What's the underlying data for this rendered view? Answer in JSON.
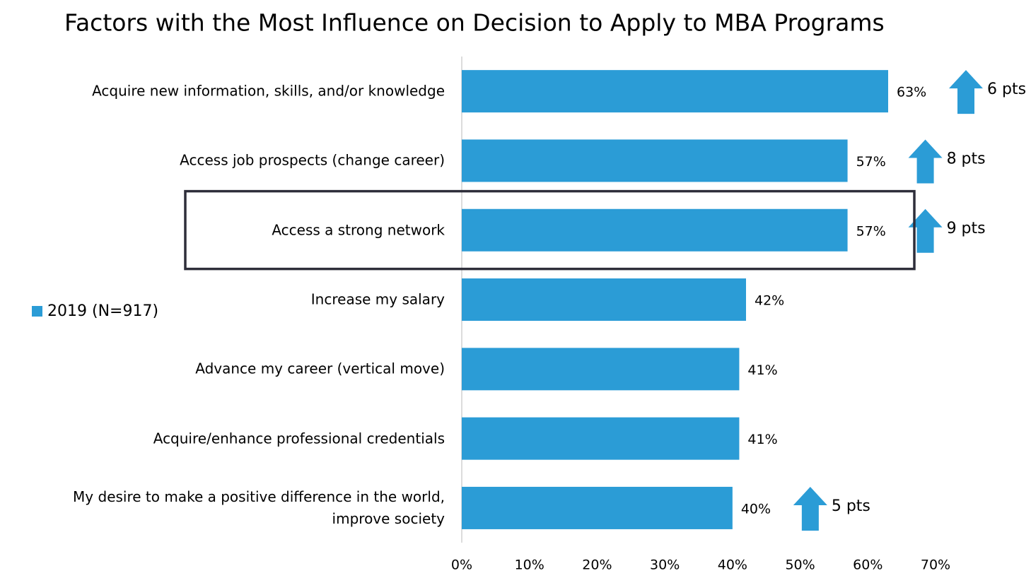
{
  "chart_data": {
    "type": "bar",
    "orientation": "horizontal",
    "title": "Factors with the Most Influence on Decision to Apply to MBA Programs",
    "categories": [
      "Acquire new information, skills, and/or knowledge",
      "Access job prospects (change career)",
      "Access a strong network",
      "Increase my salary",
      "Advance my career (vertical move)",
      "Acquire/enhance professional credentials",
      "My desire to make a positive difference in the world, improve society"
    ],
    "series": [
      {
        "name": "2019 (N=917)",
        "color": "#2b9cd6",
        "values": [
          63,
          57,
          57,
          42,
          41,
          41,
          40
        ],
        "value_labels": [
          "63%",
          "57%",
          "57%",
          "42%",
          "41%",
          "41%",
          "40%"
        ]
      }
    ],
    "change_labels": [
      "6 pts",
      "8 pts",
      "9 pts",
      null,
      null,
      null,
      "5 pts"
    ],
    "xlim": [
      0,
      70
    ],
    "xticks": [
      {
        "value": 0,
        "label": "0%"
      },
      {
        "value": 10,
        "label": "10%"
      },
      {
        "value": 20,
        "label": "20%"
      },
      {
        "value": 30,
        "label": "30%"
      },
      {
        "value": 40,
        "label": "40%"
      },
      {
        "value": 50,
        "label": "50%"
      },
      {
        "value": 60,
        "label": "60%"
      },
      {
        "value": 70,
        "label": "70%"
      }
    ],
    "legend": "left"
  }
}
